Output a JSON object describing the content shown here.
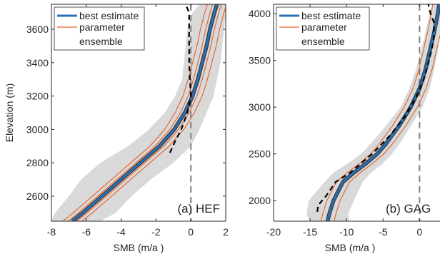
{
  "colors": {
    "best_estimate": "#2a6fb5",
    "parameter": "#e2612b",
    "ensemble": "#d9d9d9",
    "observed": "#000000",
    "zero_line": "#808080"
  },
  "chart_data": [
    {
      "type": "line",
      "panel_label": "(a) HEF",
      "xlabel": "SMB (m/a )",
      "ylabel": "Elevation (m)",
      "xlim": [
        -8,
        2
      ],
      "ylim": [
        2450,
        3750
      ],
      "x_ticks": [
        "-8",
        "-6",
        "-4",
        "-2",
        "0",
        "2"
      ],
      "y_ticks": [
        "2600",
        "2800",
        "3000",
        "3200",
        "3400",
        "3600"
      ],
      "grid": false,
      "legend_position": "top-left",
      "legend": [
        "best estimate",
        "parameter",
        "ensemble"
      ],
      "best_estimate": {
        "elevation": [
          2450,
          2500,
          2600,
          2700,
          2800,
          2900,
          3000,
          3100,
          3200,
          3300,
          3400,
          3500,
          3600,
          3700,
          3750
        ],
        "smb": [
          -6.8,
          -6.2,
          -5.1,
          -4.0,
          -2.9,
          -1.8,
          -0.95,
          -0.35,
          0.1,
          0.4,
          0.65,
          0.9,
          1.1,
          1.35,
          1.5
        ]
      },
      "parameter_offsets": [
        -0.55,
        -0.25,
        0.25,
        0.55
      ],
      "ensemble_band": {
        "elevation": [
          2450,
          2500,
          2600,
          2700,
          2800,
          2900,
          3000,
          3100,
          3200,
          3300,
          3400,
          3500,
          3600,
          3700,
          3750
        ],
        "lower": [
          -8.0,
          -7.8,
          -7.0,
          -6.3,
          -5.2,
          -3.6,
          -2.4,
          -1.5,
          -0.9,
          -0.5,
          -0.4,
          -0.3,
          -0.2,
          0.1,
          0.5
        ],
        "upper": [
          -5.2,
          -4.3,
          -3.4,
          -2.3,
          -1.0,
          0.0,
          0.5,
          0.9,
          1.3,
          1.5,
          1.7,
          1.8,
          1.9,
          2.0,
          2.0
        ]
      },
      "observed": {
        "elevation": [
          2860,
          2930,
          3000,
          3100,
          3200,
          3300,
          3400,
          3500,
          3600,
          3700,
          3750
        ],
        "smb": [
          -1.2,
          -0.9,
          -0.55,
          -0.2,
          0.0,
          -0.05,
          -0.1,
          -0.1,
          -0.1,
          -0.1,
          -0.3
        ]
      },
      "zero_line_x": 0
    },
    {
      "type": "line",
      "panel_label": "(b) GAG",
      "xlabel": "SMB (m/a )",
      "ylabel": "",
      "xlim": [
        -20,
        2.8
      ],
      "ylim": [
        1780,
        4100
      ],
      "x_ticks": [
        "-20",
        "-15",
        "-10",
        "-5",
        "0"
      ],
      "y_ticks": [
        "2000",
        "2500",
        "3000",
        "3500",
        "4000"
      ],
      "grid": false,
      "legend_position": "top-left",
      "legend": [
        "best estimate",
        "parameter",
        "ensemble"
      ],
      "best_estimate": {
        "elevation": [
          1780,
          1850,
          2000,
          2200,
          2300,
          2400,
          2500,
          2600,
          2800,
          3000,
          3200,
          3400,
          3600,
          3800,
          4000,
          4100
        ],
        "smb": [
          -12.6,
          -12.4,
          -11.8,
          -10.5,
          -9.0,
          -7.3,
          -5.8,
          -4.7,
          -2.8,
          -1.2,
          0.0,
          0.8,
          1.4,
          2.0,
          2.5,
          2.7
        ]
      },
      "parameter_offsets": [
        -0.9,
        0.9
      ],
      "ensemble_band": {
        "elevation": [
          1780,
          1850,
          2000,
          2200,
          2300,
          2400,
          2500,
          2600,
          2800,
          3000,
          3200,
          3400,
          3600,
          3800,
          4000,
          4100
        ],
        "lower": [
          -15.0,
          -15.5,
          -15.2,
          -13.0,
          -11.8,
          -9.8,
          -8.0,
          -6.8,
          -4.6,
          -2.6,
          -1.4,
          -0.5,
          0.2,
          0.8,
          1.4,
          1.7
        ],
        "upper": [
          -9.6,
          -9.8,
          -9.0,
          -7.8,
          -6.6,
          -5.0,
          -3.8,
          -2.8,
          -1.2,
          0.4,
          1.4,
          2.0,
          2.5,
          2.8,
          2.8,
          2.8
        ]
      },
      "observed": {
        "elevation": [
          1880,
          1950,
          2050,
          2200,
          2300,
          2500,
          2700,
          2900,
          3100,
          3300,
          3500,
          3700,
          3900,
          4000,
          4100
        ],
        "smb": [
          -14.0,
          -13.9,
          -12.8,
          -11.5,
          -9.5,
          -6.5,
          -4.0,
          -2.0,
          -0.5,
          0.6,
          1.3,
          1.9,
          2.0,
          1.5,
          1.2
        ]
      },
      "zero_line_x": 0
    }
  ]
}
